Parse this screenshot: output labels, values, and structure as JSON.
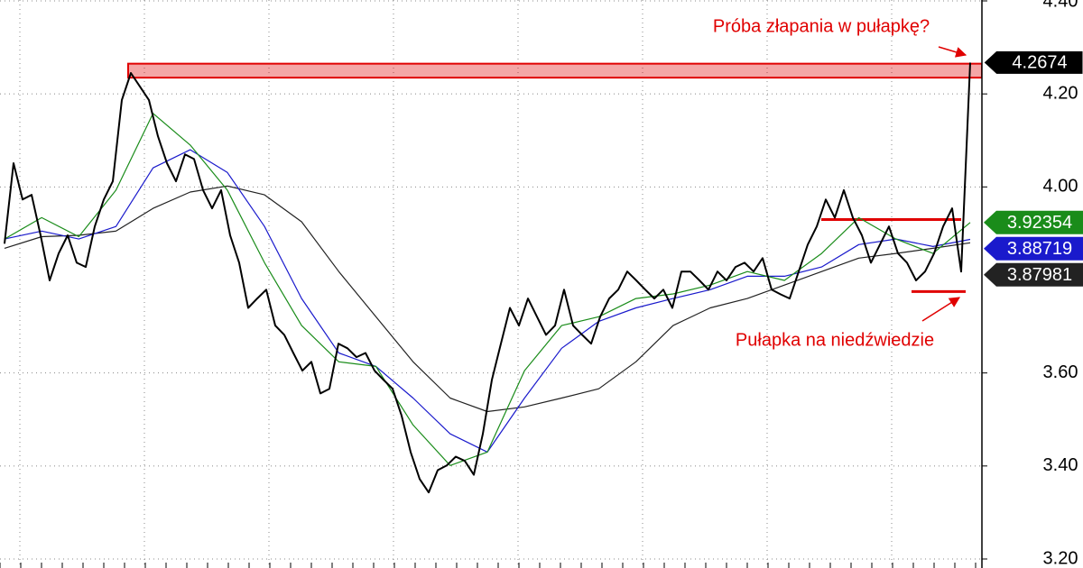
{
  "chart_data": {
    "type": "line",
    "ylim": [
      3.2,
      4.4
    ],
    "yticks": [
      {
        "value": 3.2,
        "label": "3.20"
      },
      {
        "value": 3.4,
        "label": "3.40"
      },
      {
        "value": 3.6,
        "label": "3.60"
      },
      {
        "value": 4.0,
        "label": "4.00"
      },
      {
        "value": 4.2,
        "label": "4.20"
      },
      {
        "value": 4.4,
        "label": "4.40"
      }
    ],
    "grid": true,
    "series": [
      {
        "color": "#000000",
        "values": [
          3.878,
          4.051,
          3.973,
          3.983,
          3.896,
          3.799,
          3.857,
          3.896,
          3.837,
          3.828,
          3.915,
          3.973,
          4.012,
          4.187,
          4.245,
          4.216,
          4.187,
          4.109,
          4.051,
          4.012,
          4.07,
          4.06,
          3.993,
          3.954,
          3.993,
          3.896,
          3.837,
          3.74,
          3.76,
          3.779,
          3.702,
          3.682,
          3.643,
          3.605,
          3.624,
          3.556,
          3.566,
          3.663,
          3.653,
          3.634,
          3.643,
          3.605,
          3.585,
          3.566,
          3.508,
          3.43,
          3.372,
          3.343,
          3.391,
          3.401,
          3.42,
          3.411,
          3.381,
          3.469,
          3.585,
          3.663,
          3.74,
          3.702,
          3.76,
          3.721,
          3.682,
          3.702,
          3.779,
          3.702,
          3.682,
          3.663,
          3.721,
          3.76,
          3.779,
          3.818,
          3.799,
          3.779,
          3.76,
          3.779,
          3.74,
          3.818,
          3.818,
          3.799,
          3.779,
          3.818,
          3.799,
          3.828,
          3.837,
          3.818,
          3.847,
          3.779,
          3.769,
          3.76,
          3.818,
          3.876,
          3.915,
          3.973,
          3.934,
          3.993,
          3.934,
          3.896,
          3.837,
          3.876,
          3.915,
          3.857,
          3.837,
          3.799,
          3.818,
          3.857,
          3.915,
          3.954,
          3.818,
          4.2674
        ],
        "width": 2
      },
      {
        "color": "#1a8c1a",
        "values": [
          3.888,
          3.934,
          3.893,
          3.993,
          4.158,
          4.09,
          3.993,
          3.837,
          3.702,
          3.624,
          3.614,
          3.488,
          3.401,
          3.43,
          3.605,
          3.702,
          3.721,
          3.76,
          3.77,
          3.789,
          3.818,
          3.799,
          3.857,
          3.934,
          3.888,
          3.857,
          3.92354
        ],
        "width": 1.2
      },
      {
        "color": "#1a1acc",
        "values": [
          3.888,
          3.905,
          3.888,
          3.915,
          4.041,
          4.08,
          4.031,
          3.915,
          3.76,
          3.643,
          3.614,
          3.546,
          3.469,
          3.43,
          3.546,
          3.653,
          3.711,
          3.74,
          3.76,
          3.779,
          3.808,
          3.808,
          3.828,
          3.876,
          3.888,
          3.872,
          3.88719
        ],
        "width": 1.2
      },
      {
        "color": "#222222",
        "values": [
          3.868,
          3.893,
          3.896,
          3.905,
          3.954,
          3.989,
          4.002,
          3.983,
          3.925,
          3.818,
          3.721,
          3.624,
          3.546,
          3.517,
          3.527,
          3.546,
          3.566,
          3.624,
          3.702,
          3.74,
          3.76,
          3.789,
          3.818,
          3.847,
          3.857,
          3.868,
          3.87981
        ],
        "width": 1.2
      }
    ],
    "zones": [
      {
        "from": 4.235,
        "to": 4.265,
        "color": "#e00000"
      }
    ],
    "levels": [
      {
        "value": 3.93,
        "color": "#e00000"
      },
      {
        "value": 3.775,
        "color": "#e00000"
      }
    ],
    "annotations": [
      "Próba złapania w pułapkę?",
      "Pułapka na niedźwiedzie"
    ],
    "annotation_color": "#e00000"
  }
}
